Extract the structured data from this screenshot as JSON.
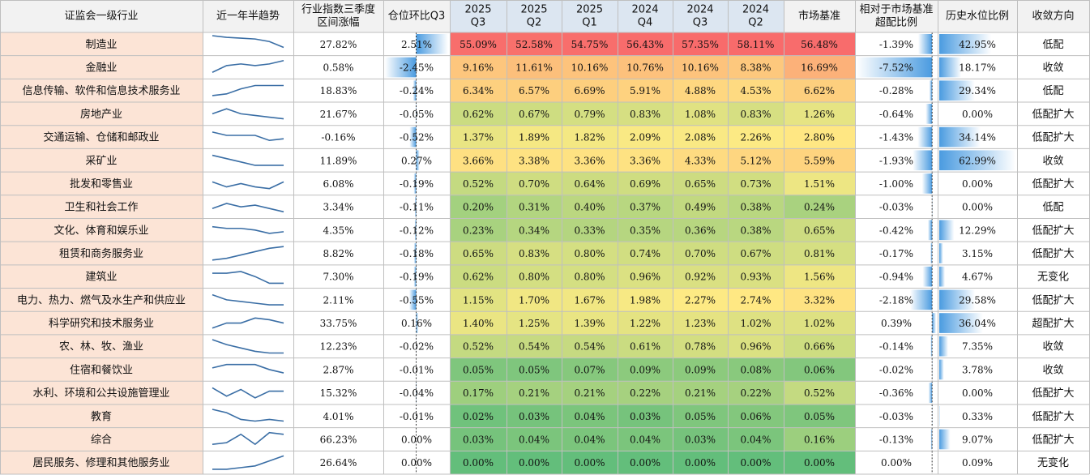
{
  "table": {
    "headers": [
      [
        "证监会一级行业"
      ],
      [
        "近一年半趋势"
      ],
      [
        "行业指数三季度",
        "区间涨幅"
      ],
      [
        "仓位环比Q3"
      ],
      [
        "2025",
        "Q3"
      ],
      [
        "2025",
        "Q2"
      ],
      [
        "2025",
        "Q1"
      ],
      [
        "2024",
        "Q4"
      ],
      [
        "2024",
        "Q3"
      ],
      [
        "2024",
        "Q2"
      ],
      [
        "市场基准"
      ],
      [
        "相对于市场基准",
        "超配比例"
      ],
      [
        "历史水位比例"
      ],
      [
        "收敛方向"
      ]
    ],
    "rows": [
      [
        "制造业",
        "27.82%",
        "2.51%",
        "55.09%",
        "52.58%",
        "54.75%",
        "56.43%",
        "57.35%",
        "58.11%",
        "56.48%",
        "-1.39%",
        "42.95%",
        "低配"
      ],
      [
        "金融业",
        "0.58%",
        "-2.45%",
        "9.16%",
        "11.61%",
        "10.16%",
        "10.76%",
        "10.16%",
        "8.38%",
        "16.69%",
        "-7.52%",
        "18.17%",
        "收敛"
      ],
      [
        "信息传输、软件和信息技术服务业",
        "18.83%",
        "-0.24%",
        "6.34%",
        "6.57%",
        "6.69%",
        "5.91%",
        "4.88%",
        "4.53%",
        "6.62%",
        "-0.28%",
        "29.34%",
        "低配"
      ],
      [
        "房地产业",
        "21.67%",
        "-0.05%",
        "0.62%",
        "0.67%",
        "0.79%",
        "0.83%",
        "1.08%",
        "0.83%",
        "1.26%",
        "-0.64%",
        "0.00%",
        "低配扩大"
      ],
      [
        "交通运输、仓储和邮政业",
        "-0.16%",
        "-0.52%",
        "1.37%",
        "1.89%",
        "1.82%",
        "2.09%",
        "2.08%",
        "2.26%",
        "2.80%",
        "-1.43%",
        "34.14%",
        "低配扩大"
      ],
      [
        "采矿业",
        "11.89%",
        "0.27%",
        "3.66%",
        "3.38%",
        "3.36%",
        "3.36%",
        "4.33%",
        "5.12%",
        "5.59%",
        "-1.93%",
        "62.99%",
        "收敛"
      ],
      [
        "批发和零售业",
        "6.08%",
        "-0.19%",
        "0.52%",
        "0.70%",
        "0.64%",
        "0.69%",
        "0.65%",
        "0.73%",
        "1.51%",
        "-1.00%",
        "0.00%",
        "低配扩大"
      ],
      [
        "卫生和社会工作",
        "3.34%",
        "-0.11%",
        "0.20%",
        "0.31%",
        "0.40%",
        "0.37%",
        "0.49%",
        "0.38%",
        "0.24%",
        "-0.03%",
        "0.00%",
        "低配"
      ],
      [
        "文化、体育和娱乐业",
        "4.35%",
        "-0.12%",
        "0.23%",
        "0.34%",
        "0.33%",
        "0.35%",
        "0.36%",
        "0.38%",
        "0.65%",
        "-0.42%",
        "12.29%",
        "低配扩大"
      ],
      [
        "租赁和商务服务业",
        "8.82%",
        "-0.18%",
        "0.65%",
        "0.83%",
        "0.80%",
        "0.74%",
        "0.70%",
        "0.67%",
        "0.81%",
        "-0.17%",
        "3.15%",
        "低配扩大"
      ],
      [
        "建筑业",
        "7.30%",
        "-0.19%",
        "0.62%",
        "0.80%",
        "0.80%",
        "0.96%",
        "0.92%",
        "0.93%",
        "1.56%",
        "-0.94%",
        "4.67%",
        "无变化"
      ],
      [
        "电力、热力、燃气及水生产和供应业",
        "2.11%",
        "-0.55%",
        "1.15%",
        "1.70%",
        "1.67%",
        "1.98%",
        "2.27%",
        "2.74%",
        "3.32%",
        "-2.18%",
        "29.58%",
        "低配扩大"
      ],
      [
        "科学研究和技术服务业",
        "33.75%",
        "0.16%",
        "1.40%",
        "1.25%",
        "1.39%",
        "1.22%",
        "1.23%",
        "1.02%",
        "1.02%",
        "0.39%",
        "36.04%",
        "超配扩大"
      ],
      [
        "农、林、牧、渔业",
        "12.23%",
        "-0.02%",
        "0.52%",
        "0.54%",
        "0.54%",
        "0.61%",
        "0.78%",
        "0.96%",
        "0.66%",
        "-0.14%",
        "7.35%",
        "收敛"
      ],
      [
        "住宿和餐饮业",
        "2.87%",
        "-0.01%",
        "0.05%",
        "0.05%",
        "0.07%",
        "0.09%",
        "0.09%",
        "0.08%",
        "0.06%",
        "-0.02%",
        "3.78%",
        "收敛"
      ],
      [
        "水利、环境和公共设施管理业",
        "15.32%",
        "-0.04%",
        "0.17%",
        "0.21%",
        "0.21%",
        "0.22%",
        "0.21%",
        "0.22%",
        "0.52%",
        "-0.36%",
        "0.00%",
        "低配扩大"
      ],
      [
        "教育",
        "4.01%",
        "-0.01%",
        "0.02%",
        "0.03%",
        "0.04%",
        "0.03%",
        "0.05%",
        "0.06%",
        "0.05%",
        "-0.03%",
        "0.33%",
        "低配扩大"
      ],
      [
        "综合",
        "66.23%",
        "0.00%",
        "0.03%",
        "0.04%",
        "0.04%",
        "0.04%",
        "0.03%",
        "0.04%",
        "0.16%",
        "-0.13%",
        "9.07%",
        "低配扩大"
      ],
      [
        "居民服务、修理和其他服务业",
        "26.64%",
        "0.00%",
        "0.00%",
        "0.00%",
        "0.00%",
        "0.00%",
        "0.00%",
        "0.00%",
        "0.00%",
        "0.00%",
        "0.09%",
        "无变化"
      ]
    ],
    "trends": [
      [
        10,
        9,
        8.5,
        8,
        6.5,
        3
      ],
      [
        2,
        6,
        7,
        6,
        7,
        9
      ],
      [
        2,
        3,
        6,
        8,
        8,
        8
      ],
      [
        5,
        8,
        5,
        4,
        3,
        2
      ],
      [
        8,
        6,
        6,
        6,
        3,
        4
      ],
      [
        8,
        6,
        4,
        2,
        2,
        2
      ],
      [
        6,
        3,
        5,
        3,
        2,
        6
      ],
      [
        4,
        7,
        5,
        6,
        4,
        2
      ],
      [
        7,
        6,
        6,
        5,
        3,
        4
      ],
      [
        1,
        2,
        4,
        6,
        8,
        9
      ],
      [
        7,
        7,
        8,
        5,
        1,
        1
      ],
      [
        8,
        5,
        4,
        3,
        2,
        2
      ],
      [
        2,
        5,
        5,
        8,
        7,
        5
      ],
      [
        9,
        6,
        4,
        2,
        1,
        1
      ],
      [
        6,
        8,
        8,
        8,
        5,
        3
      ],
      [
        8,
        3,
        7,
        2,
        6,
        6
      ],
      [
        9,
        7,
        3,
        2,
        3,
        2
      ],
      [
        2,
        3,
        8,
        2,
        9,
        8
      ],
      [
        1,
        1,
        2,
        3,
        6,
        9
      ]
    ]
  }
}
